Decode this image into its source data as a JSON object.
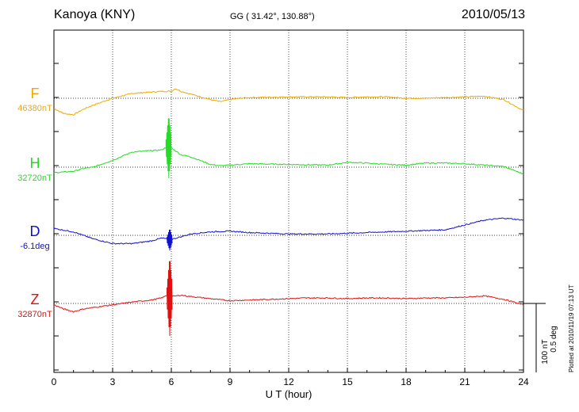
{
  "header": {
    "station": "Kanoya (KNY)",
    "coords": "GG ( 31.42°, 130.88°)",
    "date": "2010/05/13"
  },
  "plotted_note": "Plotted at 2010/11/19 07:13 UT",
  "scale": {
    "line1": "100 nT",
    "line2": "0.5 deg"
  },
  "components": [
    {
      "symbol": "F",
      "baseline": "46380nT",
      "color": "#f0a800"
    },
    {
      "symbol": "H",
      "baseline": "32720nT",
      "color": "#22dd22"
    },
    {
      "symbol": "D",
      "baseline": "-6.1deg",
      "color": "#1010d0"
    },
    {
      "symbol": "Z",
      "baseline": "32870nT",
      "color": "#e01010"
    }
  ],
  "chart_data": {
    "type": "line",
    "title": "Kanoya (KNY)",
    "subtitle": "GG ( 31.42°, 130.88°)",
    "date": "2010/05/13",
    "xlabel": "U T (hour)",
    "xlim": [
      0,
      24
    ],
    "xticks": [
      0,
      3,
      6,
      9,
      12,
      15,
      18,
      21,
      24
    ],
    "grid": true,
    "scale_bar": "100 nT / 0.5 deg",
    "series": [
      {
        "name": "F",
        "baseline": "46380nT",
        "color": "#f0a800",
        "x": [
          0,
          0.5,
          1,
          1.5,
          2,
          3,
          4,
          5,
          5.5,
          6,
          6.2,
          6.5,
          7,
          8,
          8.5,
          9,
          9.5,
          10,
          12,
          14,
          15,
          16,
          17,
          18,
          19,
          20,
          21,
          22,
          23,
          24
        ],
        "y": [
          -15,
          -22,
          -24,
          -16,
          -10,
          0,
          7,
          9,
          10,
          10,
          14,
          10,
          6,
          -2,
          -5,
          -2,
          0,
          1,
          2,
          2,
          1,
          2,
          2,
          0,
          0,
          1,
          2,
          3,
          -2,
          -18
        ]
      },
      {
        "name": "H",
        "baseline": "32720nT",
        "color": "#22dd22",
        "x": [
          0,
          0.5,
          1,
          1.5,
          2,
          3,
          4,
          5,
          5.5,
          5.8,
          6,
          6.5,
          7,
          8,
          8.5,
          9,
          10,
          12,
          14,
          15,
          16,
          17,
          18,
          19,
          20,
          21,
          22,
          23,
          24
        ],
        "y": [
          -8,
          -7,
          -6,
          -2,
          0,
          10,
          22,
          24,
          25,
          30,
          28,
          18,
          15,
          4,
          2,
          3,
          5,
          4,
          3,
          7,
          6,
          4,
          3,
          6,
          6,
          5,
          3,
          1,
          -10
        ]
      },
      {
        "name": "D",
        "baseline": "-6.1deg",
        "color": "#1010d0",
        "x": [
          0,
          1,
          2,
          3,
          4,
          5,
          5.5,
          6,
          7,
          8,
          9,
          10,
          12,
          14,
          16,
          18,
          19,
          20,
          21,
          22,
          23,
          24
        ],
        "y": [
          10,
          5,
          -5,
          -12,
          -12,
          -8,
          -4,
          -6,
          2,
          5,
          6,
          4,
          2,
          2,
          4,
          6,
          7,
          8,
          15,
          22,
          25,
          22
        ]
      },
      {
        "name": "Z",
        "baseline": "32870nT",
        "color": "#e01010",
        "x": [
          0,
          0.5,
          1,
          1.5,
          2,
          3,
          4,
          5,
          5.5,
          5.8,
          6,
          6.5,
          7,
          8,
          9,
          10,
          11,
          12,
          13,
          14,
          15,
          16,
          17,
          18,
          19,
          20,
          21,
          22,
          23,
          24
        ],
        "y": [
          -2,
          -8,
          -12,
          -8,
          -6,
          -2,
          2,
          5,
          8,
          12,
          10,
          12,
          10,
          7,
          4,
          5,
          6,
          7,
          8,
          8,
          7,
          8,
          8,
          7,
          8,
          8,
          9,
          11,
          6,
          -2
        ]
      }
    ],
    "bursts": [
      {
        "series": "H",
        "x": 5.85,
        "amp": 40
      },
      {
        "series": "D",
        "x": 5.9,
        "amp": 14
      },
      {
        "series": "Z",
        "x": 5.9,
        "amp": 50
      }
    ]
  }
}
